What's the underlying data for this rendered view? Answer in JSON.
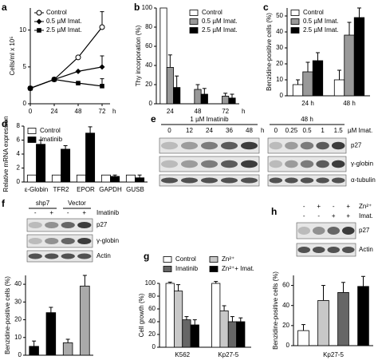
{
  "chart_data": [
    {
      "panel": "a",
      "type": "line",
      "ylabel": "Cells/ml x 10⁵",
      "xlabel": "h",
      "x": [
        0,
        24,
        48,
        72
      ],
      "xlim": [
        0,
        80
      ],
      "xticks": [
        0,
        24,
        48,
        72
      ],
      "ylim": [
        0,
        13
      ],
      "yticks": [
        0,
        5,
        10
      ],
      "legend": "upper left",
      "series": [
        {
          "name": "Control",
          "color": "#000000",
          "marker": "circle-open",
          "values": [
            2.1,
            3.3,
            6.3,
            10.4
          ],
          "errors": [
            null,
            null,
            null,
            2.1
          ]
        },
        {
          "name": "0.5 µM Imat.",
          "color": "#000000",
          "marker": "diamond-filled",
          "values": [
            2.1,
            3.3,
            4.4,
            5.0
          ],
          "errors": [
            null,
            null,
            null,
            1.5
          ]
        },
        {
          "name": "2.5 µM Imat.",
          "color": "#000000",
          "marker": "square-filled",
          "values": [
            2.1,
            3.3,
            2.8,
            2.4
          ],
          "errors": [
            null,
            null,
            null,
            1.0
          ]
        }
      ]
    },
    {
      "panel": "b",
      "type": "bar",
      "ylabel": "Thy incorporation (%)",
      "xlabel": "h",
      "categories": [
        "24",
        "48",
        "72"
      ],
      "ylim": [
        0,
        100
      ],
      "yticks": [
        0,
        20,
        40,
        60,
        80,
        100
      ],
      "legend": "upper right",
      "series": [
        {
          "name": "Control",
          "color": "#ffffff",
          "values": [
            100,
            null,
            null
          ]
        },
        {
          "name": "0.5 µM Imat.",
          "color": "#999999",
          "values": [
            38,
            15,
            8
          ],
          "errors": [
            13,
            5,
            3
          ]
        },
        {
          "name": "2.5 µM Imat.",
          "color": "#000000",
          "values": [
            17,
            10,
            6
          ],
          "errors": [
            12,
            6,
            4
          ]
        }
      ]
    },
    {
      "panel": "c",
      "type": "bar",
      "ylabel": "Benzidine-positive cells (%)",
      "categories": [
        "24 h",
        "48 h"
      ],
      "ylim": [
        0,
        55
      ],
      "yticks": [
        0,
        10,
        20,
        30,
        40,
        50
      ],
      "legend": "upper left",
      "series": [
        {
          "name": "Control",
          "color": "#ffffff",
          "values": [
            7,
            10
          ],
          "errors": [
            3,
            6
          ]
        },
        {
          "name": "0.5 µM Imat.",
          "color": "#999999",
          "values": [
            15,
            38
          ],
          "errors": [
            6,
            8
          ]
        },
        {
          "name": "2.5 µM Imat.",
          "color": "#000000",
          "values": [
            22,
            49
          ],
          "errors": [
            5,
            6
          ]
        }
      ]
    },
    {
      "panel": "d",
      "type": "bar",
      "ylabel": "Relative mRNA expression",
      "categories": [
        "ε-Globin",
        "TFR2",
        "EPOR",
        "GAPDH",
        "GUSB"
      ],
      "ylim": [
        0,
        8
      ],
      "yticks": [
        0,
        2,
        4,
        6,
        8
      ],
      "legend": "upper left",
      "series": [
        {
          "name": "Control",
          "color": "#ffffff",
          "values": [
            1,
            1,
            1,
            1,
            1
          ]
        },
        {
          "name": "Imatinib",
          "color": "#000000",
          "values": [
            5.4,
            4.7,
            7.0,
            0.8,
            0.6
          ],
          "errors": [
            0.6,
            0.5,
            0.9,
            0.2,
            0.4
          ]
        }
      ]
    },
    {
      "type": "bar",
      "ylabel": "Benzidine-positive cells (%)",
      "categories": [
        null,
        null,
        null,
        null
      ],
      "values": [
        5,
        24,
        7,
        39
      ],
      "errors": [
        3,
        3,
        2,
        6
      ],
      "colors": [
        "#000000",
        "#000000",
        "#aaaaaa",
        "#aaaaaa"
      ],
      "ylim": [
        0,
        45
      ],
      "yticks": [
        0,
        10,
        20,
        30,
        40
      ]
    },
    {
      "panel": "g",
      "type": "bar",
      "ylabel": "Cell growth (%)",
      "categories": [
        "K562",
        "Kp27-5"
      ],
      "ylim": [
        0,
        100
      ],
      "yticks": [
        0,
        20,
        40,
        60,
        80,
        100
      ],
      "legend": "top",
      "series": [
        {
          "name": "Control",
          "color": "#ffffff",
          "values": [
            100,
            100
          ],
          "errors": [
            2,
            3
          ]
        },
        {
          "name": "Zn²⁺",
          "color": "#c8c8c8",
          "values": [
            88,
            57
          ],
          "errors": [
            10,
            8
          ]
        },
        {
          "name": "Imatinib",
          "color": "#666666",
          "values": [
            43,
            40
          ],
          "errors": [
            5,
            8
          ]
        },
        {
          "name": "Zn²⁺+ Imat.",
          "color": "#000000",
          "values": [
            35,
            40
          ],
          "errors": [
            8,
            6
          ]
        }
      ]
    },
    {
      "type": "bar",
      "ylabel": "Benzidine-positive cells (%)",
      "xlabel": "Kp27-5",
      "categories": [
        null,
        null,
        null,
        null
      ],
      "values": [
        15,
        45,
        53,
        59
      ],
      "errors": [
        6,
        15,
        10,
        10
      ],
      "colors": [
        "#ffffff",
        "#c8c8c8",
        "#666666",
        "#000000"
      ],
      "ylim": [
        0,
        70
      ],
      "yticks": [
        0,
        20,
        40,
        60
      ]
    }
  ],
  "blots": [
    {
      "panel": "e",
      "groups": [
        {
          "title": "1 µM Imatinib",
          "lanes": [
            "0",
            "12",
            "24",
            "36",
            "48"
          ],
          "unit": "h"
        },
        {
          "title": "48 h",
          "lanes": [
            "0",
            "0.25",
            "0.5",
            "1",
            "1.5"
          ],
          "unit": "µM Imat."
        }
      ],
      "rows": [
        "p27",
        "γ-globin",
        "α-tubulin"
      ]
    },
    {
      "panel": "f",
      "groups": [
        {
          "title": "shp7"
        },
        {
          "title": "Vector"
        }
      ],
      "conditions": [
        {
          "name": "Imatinib",
          "signs": [
            "-",
            "+",
            "-",
            "+"
          ]
        }
      ],
      "rows": [
        "p27",
        "γ-globin",
        "Actin"
      ]
    },
    {
      "panel": "h",
      "conditions": [
        {
          "name": "Zn²⁺",
          "signs": [
            "-",
            "+",
            "-",
            "+"
          ]
        },
        {
          "name": "Imat.",
          "signs": [
            "-",
            "-",
            "+",
            "+"
          ]
        }
      ],
      "rows": [
        "p27",
        "Actin"
      ]
    }
  ]
}
